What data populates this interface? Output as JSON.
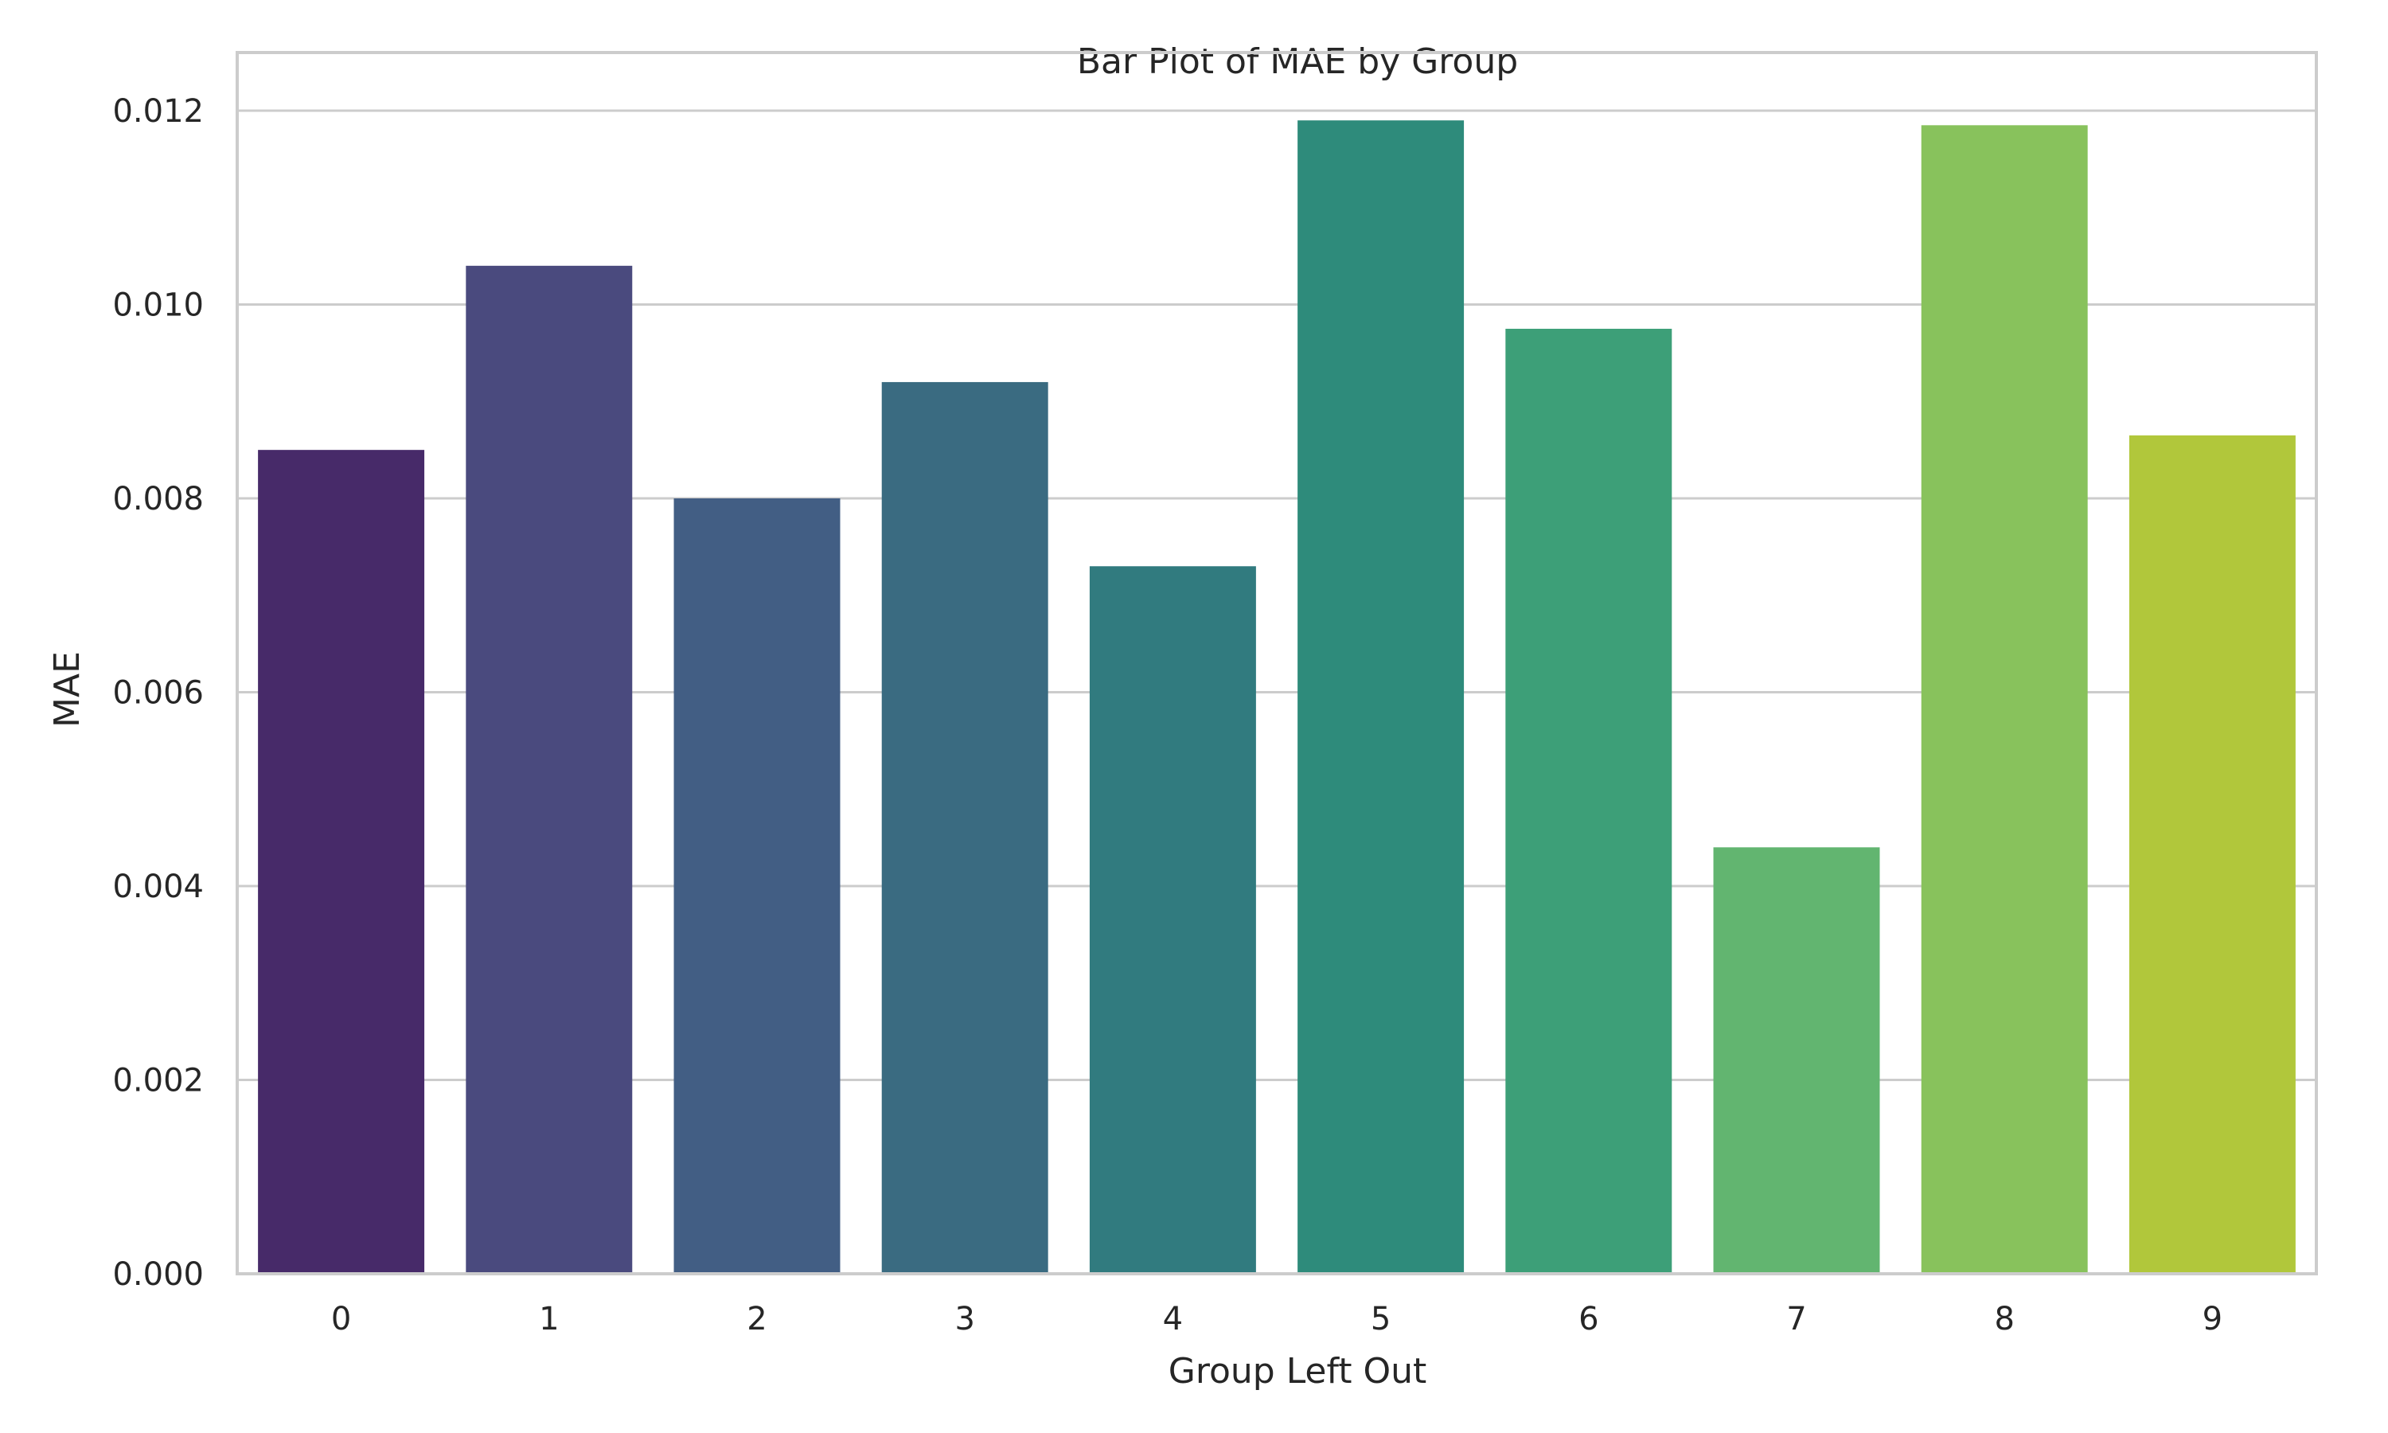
{
  "chart_data": {
    "type": "bar",
    "title": "Bar Plot of MAE by Group",
    "xlabel": "Group Left Out",
    "ylabel": "MAE",
    "categories": [
      "0",
      "1",
      "2",
      "3",
      "4",
      "5",
      "6",
      "7",
      "8",
      "9"
    ],
    "values": [
      0.0085,
      0.0104,
      0.008,
      0.0092,
      0.0073,
      0.0119,
      0.00975,
      0.0044,
      0.01185,
      0.00865
    ],
    "ylim": [
      0,
      0.0126
    ],
    "yticks": [
      "0.000",
      "0.002",
      "0.004",
      "0.006",
      "0.008",
      "0.010",
      "0.012"
    ],
    "ytick_values": [
      0,
      0.002,
      0.004,
      0.006,
      0.008,
      0.01,
      0.012
    ],
    "grid": "horizontal",
    "colors": [
      "#472a69",
      "#4a4a7e",
      "#425e84",
      "#3a6b81",
      "#317b7f",
      "#2e8b7b",
      "#3d9f78",
      "#62b570",
      "#88c25c",
      "#b1c73b"
    ]
  }
}
